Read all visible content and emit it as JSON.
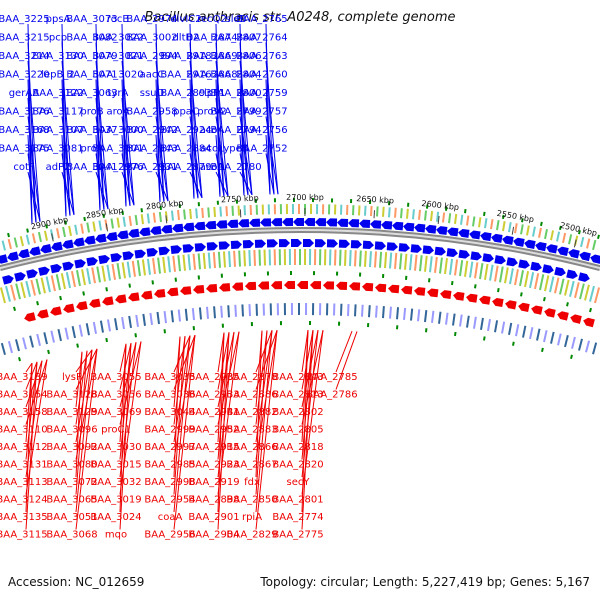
{
  "title": "Bacillus anthracis str. A0248, complete genome",
  "colors": {
    "top_strand": "#0000ee",
    "bottom_strand": "#ee0000",
    "backbone": "#888888",
    "tick": "#008800"
  },
  "scale_labels": [
    "2900 kbp",
    "2850 kbp",
    "2800 kbp",
    "2750 kbp",
    "2700 kbp",
    "2650 kbp",
    "2600 kbp",
    "2550 kbp",
    "2500 kbp"
  ],
  "top_genes": [
    "BAA_3225",
    "BAA_3215",
    "BAA_3214",
    "BAA_3220",
    "gerAA",
    "BAA_3176",
    "BAA_3168",
    "BAA_3175",
    "cotF",
    "ppsA",
    "pcp",
    "BAA_3130",
    "lepB_2",
    "BAA_3122",
    "BAA_3117",
    "BAA_3107",
    "BAA_3081",
    "adP2",
    "BAA_3073",
    "BAA_3082",
    "BAA_3079",
    "BAA_3071",
    "BAA_3063",
    "proB",
    "BAA_3037",
    "proA",
    "BAA_3041",
    "rocB",
    "BAA_3022",
    "BAA_3021",
    "BAA_3020",
    "tyrA",
    "aroA",
    "BAA_3000",
    "BAA_3001",
    "BAA_2976",
    "BAA_2974",
    "BAA_3002",
    "BAA_2994",
    "aacC",
    "ssuD",
    "BAA_2958",
    "BAA_2942",
    "BAA_2943",
    "BAA_2931",
    "divIC2",
    "dltD2",
    "BAA_2918",
    "BAA_2916",
    "BAA_2893",
    "ppaC",
    "BAA_2924",
    "BAA_2884",
    "BAA_2879",
    "recQ2",
    "BAA_2874",
    "BAA_2869",
    "BAA_2868",
    "clpP1",
    "proV2",
    "acoA",
    "acoL",
    "acoB",
    "sleB",
    "BAA_2807",
    "BAA_2806",
    "BAA_2804",
    "BAA_2800",
    "BAA_2799",
    "BAA_2794",
    "ypeB",
    "BAA_2780",
    "BAA_2765",
    "BAA_2764",
    "BAA_2763",
    "BAA_2760",
    "BAA_2759",
    "BAA_2757",
    "BAA_2756",
    "BAA_2752"
  ],
  "bottom_genes": [
    "BAA_3139",
    "BAA_3154",
    "BAA_3158",
    "BAA_3110",
    "BAA_3112",
    "BAA_3131",
    "BAA_3113",
    "BAA_3124",
    "BAA_3135",
    "BAA_3115",
    "lysP",
    "BAA_3128",
    "BAA_3129",
    "BAA_3096",
    "BAA_3092",
    "BAA_3080",
    "BAA_3072",
    "BAA_3065",
    "BAA_3051",
    "BAA_3068",
    "BAA_3055",
    "BAA_3056",
    "BAA_3069",
    "proC1",
    "BAA_3030",
    "BAA_3015",
    "BAA_3032",
    "BAA_3019",
    "BAA_3024",
    "mqo",
    "BAA_3035",
    "BAA_3036",
    "BAA_3044",
    "BAA_2999",
    "BAA_2997",
    "BAA_2985",
    "BAA_2998",
    "BAA_2954",
    "coaA",
    "BAA_2956",
    "BAA_2935",
    "BAA_2933",
    "BAA_2941",
    "BAA_2952",
    "BAA_2915",
    "BAA_2923",
    "BAA_2919",
    "BAA_2898",
    "BAA_2901",
    "BAA_2904",
    "BAA_2878",
    "BAA_2886",
    "BAA_2882",
    "BAA_2883",
    "BAA_2866",
    "BAA_2867",
    "fdx",
    "BAA_2850",
    "rpiA",
    "BAA_2829",
    "BAA_2843",
    "BAA_2813",
    "BAA_2802",
    "BAA_2805",
    "BAA_2818",
    "BAA_2820",
    "secY",
    "BAA_2801",
    "BAA_2774",
    "BAA_2775",
    "BAA_2785",
    "BAA_2786"
  ],
  "footer": {
    "accession": "Accession: NC_012659",
    "topology": "Topology: circular; Length: 5,227,419 bp; Genes: 5,167"
  }
}
